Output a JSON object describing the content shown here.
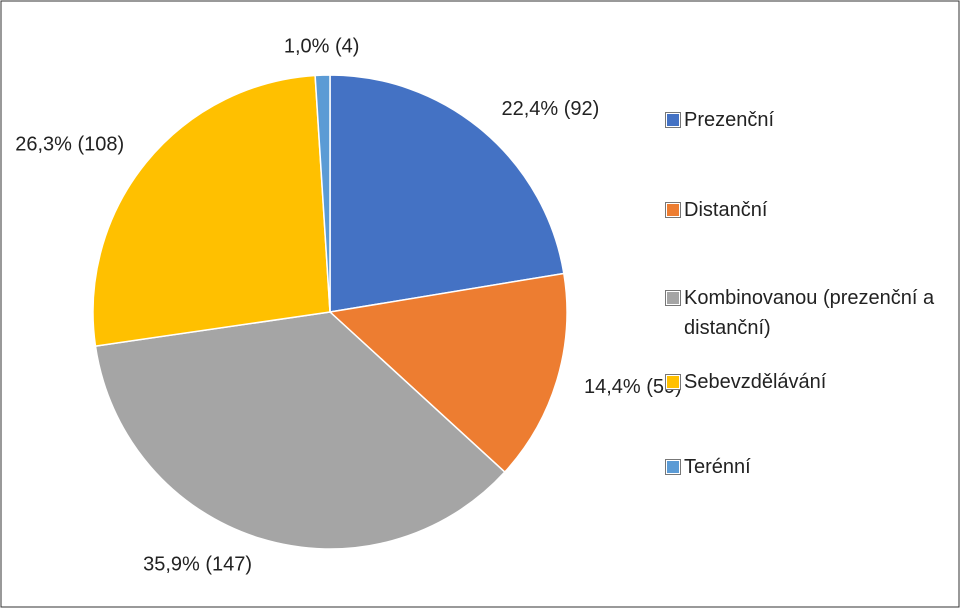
{
  "chart_data": {
    "type": "pie",
    "categories": [
      "Prezenční",
      "Distanční",
      "Kombinovanou (prezenční a distanční)",
      "Sebevzdělávání",
      "Terénní"
    ],
    "values": [
      22.4,
      14.4,
      35.9,
      26.3,
      1.0
    ],
    "value_labels": [
      "22,4% (92)",
      "14,4% (59)",
      "35,9% (147)",
      "26,3% (108)",
      "1,0% (4)"
    ],
    "colors": [
      "#4472c4",
      "#ed7d31",
      "#a5a5a5",
      "#ffc000",
      "#5b9bd5"
    ],
    "legend": "right"
  }
}
